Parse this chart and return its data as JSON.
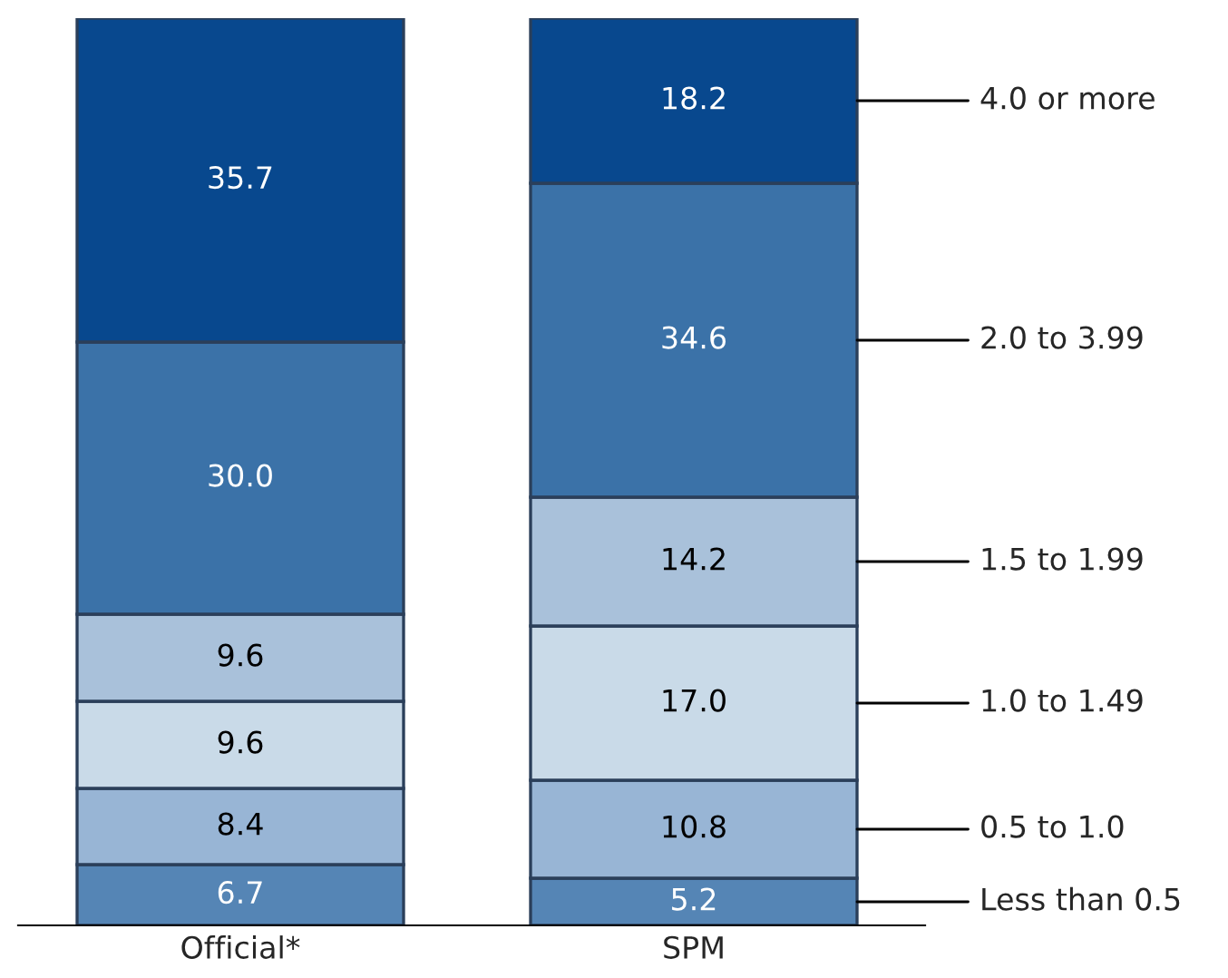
{
  "chart_data": {
    "type": "bar",
    "stacked": true,
    "categories": [
      "Official*",
      "SPM"
    ],
    "series": [
      {
        "name": "Less than 0.5",
        "color": "#5585b5",
        "values": [
          6.7,
          5.2
        ],
        "value_labels": [
          "6.7",
          "5.2"
        ]
      },
      {
        "name": "0.5 to 1.0",
        "color": "#98b5d5",
        "values": [
          8.4,
          10.8
        ],
        "value_labels": [
          "8.4",
          "10.8"
        ]
      },
      {
        "name": "1.0 to 1.49",
        "color": "#c9dae8",
        "values": [
          9.6,
          17.0
        ],
        "value_labels": [
          "9.6",
          "17.0"
        ]
      },
      {
        "name": "1.5 to 1.99",
        "color": "#a9c1da",
        "values": [
          9.6,
          14.2
        ],
        "value_labels": [
          "9.6",
          "14.2"
        ]
      },
      {
        "name": "2.0 to 3.99",
        "color": "#3b72a8",
        "values": [
          30.0,
          34.6
        ],
        "value_labels": [
          "30.0",
          "34.6"
        ]
      },
      {
        "name": "4.0 or more",
        "color": "#08488e",
        "values": [
          35.7,
          18.2
        ],
        "value_labels": [
          "35.7",
          "18.2"
        ]
      }
    ]
  }
}
